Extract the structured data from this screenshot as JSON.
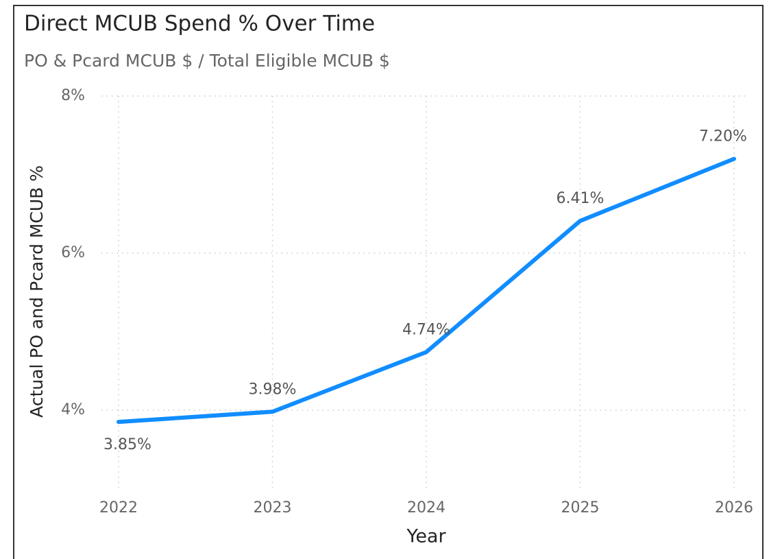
{
  "chart_data": {
    "type": "line",
    "title": "Direct MCUB Spend % Over Time",
    "subtitle": "PO & Pcard MCUB $ / Total Eligible MCUB $",
    "x_label": "Year",
    "y_label": "Actual PO and Pcard MCUB %",
    "categories": [
      "2022",
      "2023",
      "2024",
      "2025",
      "2026"
    ],
    "series": [
      {
        "name": "Actual PO and Pcard MCUB %",
        "color": "#118DFF",
        "values": [
          3.85,
          3.98,
          4.74,
          6.41,
          7.2
        ],
        "value_labels": [
          "3.85%",
          "3.98%",
          "4.74%",
          "6.41%",
          "7.20%"
        ]
      }
    ],
    "ylim": [
      3,
      8
    ],
    "yticks": [
      {
        "value": 4,
        "label": "4%"
      },
      {
        "value": 6,
        "label": "6%"
      },
      {
        "value": 8,
        "label": "8%"
      }
    ],
    "grid": true
  }
}
